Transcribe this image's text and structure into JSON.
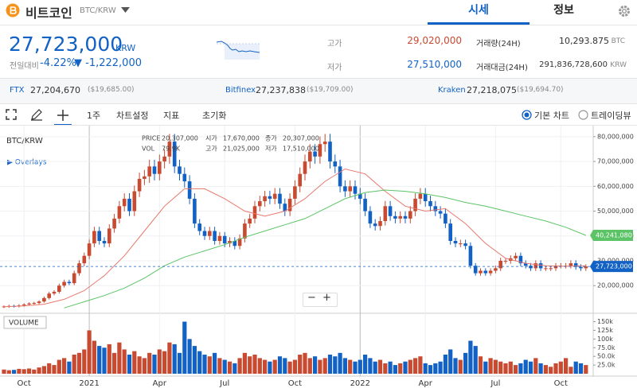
{
  "header": {
    "coin": "비트코인",
    "pair": "BTC/KRW",
    "tabs": [
      "시세",
      "정보"
    ]
  },
  "ticker": {
    "price": "27,723,000",
    "unit": "KRW",
    "change_label": "전일대비",
    "change_rate": "-4.22%",
    "change_amount": "▼ -1,222,000",
    "high_label": "고가",
    "high": "29,020,000",
    "low_label": "저가",
    "low": "27,510,000",
    "volume_label": "거래량(24H)",
    "volume": "10,293.875",
    "volume_unit": "BTC",
    "value_label": "거래대금(24H)",
    "value": "291,836,728,600",
    "value_unit": "KRW"
  },
  "exchanges": [
    {
      "name": "FTX",
      "price": "27,204,670",
      "usd": "($19,685.00)"
    },
    {
      "name": "Bitfinex",
      "price": "27,237,838",
      "usd": "($19,709.00)"
    },
    {
      "name": "Kraken",
      "price": "27,218,075",
      "usd": "($19,694.70)"
    }
  ],
  "toolbar": {
    "interval": "1주",
    "settings": "차트설정",
    "indicators": "지표",
    "reset": "초기화",
    "modes": [
      "기본 차트",
      "트레이딩뷰"
    ],
    "zoom_out": "−",
    "zoom_in": "+"
  },
  "chart_data": {
    "type": "candlestick",
    "title": "BTC/KRW",
    "overlays": "▶ Overlays",
    "up_color": "#c84a31",
    "down_color": "#1261c4",
    "categories": [
      null,
      null,
      null,
      null,
      "Oct",
      null,
      null,
      null,
      null,
      null,
      null,
      null,
      null,
      null,
      null,
      null,
      null,
      "2021",
      null,
      null,
      null,
      null,
      null,
      null,
      null,
      null,
      null,
      null,
      null,
      null,
      null,
      "Apr",
      null,
      null,
      null,
      null,
      null,
      null,
      null,
      null,
      null,
      null,
      null,
      null,
      "Jul",
      null,
      null,
      null,
      null,
      null,
      null,
      null,
      null,
      null,
      null,
      null,
      null,
      null,
      "Oct",
      null,
      null,
      null,
      null,
      null,
      null,
      null,
      null,
      null,
      null,
      null,
      null,
      "2022",
      null,
      null,
      null,
      null,
      null,
      null,
      null,
      null,
      null,
      null,
      null,
      null,
      "Apr",
      null,
      null,
      null,
      null,
      null,
      null,
      null,
      null,
      null,
      null,
      null,
      null,
      null,
      "Jul",
      null,
      null,
      null,
      null,
      null,
      null,
      null,
      null,
      null,
      null,
      null,
      null,
      "Oct",
      null,
      null,
      null,
      null,
      null
    ],
    "ohlc": [
      [
        11500000,
        12100000,
        11000000,
        11600000
      ],
      [
        11600000,
        12300000,
        11100000,
        11800000
      ],
      [
        11800000,
        12300000,
        11200000,
        11700000
      ],
      [
        11700000,
        12500000,
        11200000,
        12000000
      ],
      [
        12000000,
        12900000,
        11500000,
        12400000
      ],
      [
        12400000,
        13300000,
        11900000,
        12800000
      ],
      [
        12800000,
        13500000,
        12300000,
        13000000
      ],
      [
        13000000,
        14100000,
        12500000,
        13600000
      ],
      [
        13600000,
        15600000,
        13100000,
        15000000
      ],
      [
        15000000,
        17500000,
        14400000,
        16800000
      ],
      [
        16800000,
        18200000,
        16100000,
        17500000
      ],
      [
        17500000,
        20800000,
        16800000,
        20000000
      ],
      [
        20000000,
        22400000,
        19200000,
        21500000
      ],
      [
        21500000,
        22400000,
        20200000,
        21000000
      ],
      [
        21000000,
        26000000,
        20200000,
        25000000
      ],
      [
        25000000,
        30200000,
        24000000,
        29000000
      ],
      [
        29000000,
        33300000,
        27800000,
        32000000
      ],
      [
        32000000,
        38500000,
        30700000,
        37000000
      ],
      [
        37000000,
        43700000,
        35500000,
        42000000
      ],
      [
        42000000,
        43700000,
        36500000,
        38000000
      ],
      [
        38000000,
        39500000,
        35500000,
        37000000
      ],
      [
        37000000,
        44700000,
        35500000,
        43000000
      ],
      [
        43000000,
        48900000,
        41300000,
        47000000
      ],
      [
        47000000,
        54100000,
        45100000,
        52000000
      ],
      [
        52000000,
        57200000,
        49900000,
        55000000
      ],
      [
        55000000,
        57200000,
        48000000,
        50000000
      ],
      [
        50000000,
        60300000,
        48000000,
        58000000
      ],
      [
        58000000,
        65500000,
        55700000,
        63000000
      ],
      [
        63000000,
        66600000,
        60500000,
        64000000
      ],
      [
        64000000,
        70700000,
        61400000,
        68000000
      ],
      [
        68000000,
        70700000,
        62400000,
        65000000
      ],
      [
        65000000,
        72800000,
        62400000,
        70000000
      ],
      [
        70000000,
        74900000,
        67200000,
        72000000
      ],
      [
        72000000,
        81100000,
        69100000,
        78000000
      ],
      [
        78000000,
        81100000,
        65300000,
        68000000
      ],
      [
        68000000,
        70700000,
        62400000,
        65000000
      ],
      [
        65000000,
        67600000,
        59500000,
        62000000
      ],
      [
        62000000,
        64500000,
        52800000,
        55000000
      ],
      [
        55000000,
        57200000,
        43200000,
        45000000
      ],
      [
        45000000,
        46800000,
        40300000,
        42000000
      ],
      [
        42000000,
        43700000,
        38400000,
        40000000
      ],
      [
        40000000,
        43700000,
        38400000,
        42000000
      ],
      [
        42000000,
        43700000,
        36500000,
        38000000
      ],
      [
        38000000,
        41600000,
        36500000,
        40000000
      ],
      [
        40000000,
        41600000,
        35500000,
        37000000
      ],
      [
        37000000,
        39500000,
        35500000,
        38000000
      ],
      [
        38000000,
        39500000,
        34600000,
        36000000
      ],
      [
        36000000,
        40600000,
        34600000,
        39000000
      ],
      [
        39000000,
        46800000,
        37400000,
        45000000
      ],
      [
        45000000,
        48900000,
        43200000,
        47000000
      ],
      [
        47000000,
        54100000,
        45100000,
        52000000
      ],
      [
        52000000,
        56200000,
        49900000,
        54000000
      ],
      [
        54000000,
        58200000,
        51800000,
        56000000
      ],
      [
        56000000,
        58200000,
        52800000,
        55000000
      ],
      [
        55000000,
        59300000,
        52800000,
        57000000
      ],
      [
        57000000,
        59300000,
        50900000,
        53000000
      ],
      [
        53000000,
        55100000,
        48000000,
        50000000
      ],
      [
        50000000,
        57200000,
        48000000,
        55000000
      ],
      [
        55000000,
        62400000,
        52800000,
        60000000
      ],
      [
        60000000,
        67600000,
        57600000,
        65000000
      ],
      [
        65000000,
        72800000,
        62400000,
        70000000
      ],
      [
        70000000,
        77000000,
        67200000,
        74000000
      ],
      [
        74000000,
        77000000,
        69100000,
        72000000
      ],
      [
        72000000,
        80100000,
        69100000,
        77000000
      ],
      [
        77000000,
        81100000,
        73900000,
        78000000
      ],
      [
        78000000,
        81100000,
        67200000,
        70000000
      ],
      [
        70000000,
        72800000,
        65300000,
        68000000
      ],
      [
        68000000,
        70700000,
        57600000,
        60000000
      ],
      [
        60000000,
        62400000,
        55700000,
        58000000
      ],
      [
        58000000,
        62400000,
        55700000,
        60000000
      ],
      [
        60000000,
        62400000,
        54700000,
        57000000
      ],
      [
        57000000,
        59300000,
        52800000,
        55000000
      ],
      [
        55000000,
        57200000,
        48000000,
        50000000
      ],
      [
        50000000,
        52000000,
        43200000,
        45000000
      ],
      [
        45000000,
        46800000,
        42200000,
        44000000
      ],
      [
        44000000,
        47800000,
        42200000,
        46000000
      ],
      [
        46000000,
        54100000,
        44200000,
        52000000
      ],
      [
        52000000,
        54100000,
        46100000,
        48000000
      ],
      [
        48000000,
        49900000,
        45100000,
        47000000
      ],
      [
        47000000,
        49900000,
        45100000,
        48000000
      ],
      [
        48000000,
        49900000,
        45100000,
        47000000
      ],
      [
        47000000,
        52000000,
        45100000,
        50000000
      ],
      [
        50000000,
        57200000,
        48000000,
        55000000
      ],
      [
        55000000,
        59300000,
        52800000,
        57000000
      ],
      [
        57000000,
        59300000,
        51800000,
        54000000
      ],
      [
        54000000,
        56200000,
        49900000,
        52000000
      ],
      [
        52000000,
        54100000,
        48000000,
        50000000
      ],
      [
        50000000,
        52000000,
        47000000,
        49000000
      ],
      [
        49000000,
        51000000,
        43200000,
        45000000
      ],
      [
        45000000,
        46800000,
        36500000,
        38000000
      ],
      [
        38000000,
        39500000,
        35500000,
        37000000
      ],
      [
        37000000,
        38500000,
        35500000,
        37000000
      ],
      [
        37000000,
        38500000,
        34600000,
        36000000
      ],
      [
        36000000,
        37400000,
        26900000,
        28000000
      ],
      [
        28000000,
        29100000,
        24000000,
        25000000
      ],
      [
        25000000,
        27000000,
        24000000,
        26000000
      ],
      [
        26000000,
        27000000,
        24000000,
        25000000
      ],
      [
        25000000,
        27000000,
        24000000,
        26000000
      ],
      [
        26000000,
        28100000,
        25000000,
        27000000
      ],
      [
        27000000,
        31200000,
        25900000,
        30000000
      ],
      [
        30000000,
        31200000,
        28800000,
        30000000
      ],
      [
        30000000,
        32200000,
        28800000,
        31000000
      ],
      [
        31000000,
        33300000,
        29800000,
        32000000
      ],
      [
        32000000,
        33300000,
        27800000,
        29000000
      ],
      [
        29000000,
        30200000,
        26900000,
        28000000
      ],
      [
        28000000,
        29100000,
        25900000,
        27000000
      ],
      [
        27000000,
        30200000,
        25900000,
        29000000
      ],
      [
        29000000,
        30200000,
        25900000,
        27000000
      ],
      [
        27000000,
        28100000,
        25900000,
        27000000
      ],
      [
        27000000,
        28100000,
        25900000,
        27000000
      ],
      [
        27000000,
        29100000,
        25900000,
        28000000
      ],
      [
        28000000,
        29100000,
        26900000,
        28000000
      ],
      [
        28000000,
        29100000,
        26900000,
        28000000
      ],
      [
        28000000,
        30200000,
        26900000,
        29000000
      ],
      [
        29000000,
        30200000,
        26400000,
        27500000
      ],
      [
        27500000,
        28600000,
        25900000,
        27000000
      ],
      [
        27000000,
        28600000,
        25900000,
        27723000
      ]
    ],
    "ylim": [
      9500000,
      83800000
    ],
    "yticks": [
      {
        "value": 20000000,
        "label": "20,000,000"
      },
      {
        "value": 30000000,
        "label": "30,000,000"
      },
      {
        "value": 40000000,
        "label": "40,000,000"
      },
      {
        "value": 50000000,
        "label": "50,000,000"
      },
      {
        "value": 60000000,
        "label": "60,000,000"
      },
      {
        "value": 70000000,
        "label": "70,000,000"
      },
      {
        "value": 80000000,
        "label": "80,000,000"
      }
    ],
    "ma": [
      {
        "color": "#e8786c",
        "values": [
          11500000,
          11800000,
          12500000,
          14500000,
          18000000,
          24000000,
          32000000,
          42000000,
          52000000,
          59000000,
          59000000,
          55000000,
          50000000,
          48000000,
          50000000,
          55000000,
          62000000,
          67000000,
          65000000,
          58000000,
          52000000,
          50000000,
          51000000,
          45000000,
          37000000,
          31000000,
          29000000,
          28000000,
          27800000,
          28000000
        ]
      },
      {
        "color": "#5cc466",
        "label": "40,241,080",
        "values": [
          null,
          null,
          null,
          11000000,
          13500000,
          16000000,
          19000000,
          23000000,
          28000000,
          31500000,
          34000000,
          36500000,
          39500000,
          42000000,
          44500000,
          47000000,
          51000000,
          55000000,
          57500000,
          58500000,
          58000000,
          57000000,
          55500000,
          53500000,
          52000000,
          50000000,
          48000000,
          46000000,
          43500000,
          40241080
        ]
      }
    ],
    "current_price": {
      "value": 27723000,
      "label": "27,723,000"
    },
    "tooltip": {
      "price_label": "PRICE",
      "price": "20,307,000",
      "open_label": "시가",
      "open": "17,670,000",
      "close_label": "종가",
      "close": "20,307,000",
      "vol_label": "VOL",
      "vol": "79.9K",
      "high_label": "고가",
      "high": "21,025,000",
      "low_label": "저가",
      "low": "17,510,000"
    },
    "volume": {
      "title": "VOLUME",
      "values": [
        12000,
        10000,
        11000,
        14000,
        13000,
        15000,
        12000,
        18000,
        22000,
        30000,
        25000,
        40000,
        45000,
        35000,
        55000,
        60000,
        70000,
        125000,
        95000,
        80000,
        75000,
        85000,
        60000,
        90000,
        70000,
        55000,
        65000,
        50000,
        45000,
        60000,
        55000,
        70000,
        65000,
        90000,
        85000,
        60000,
        150000,
        100000,
        80000,
        65000,
        55000,
        50000,
        60000,
        45000,
        40000,
        35000,
        30000,
        45000,
        60000,
        50000,
        55000,
        45000,
        40000,
        35000,
        40000,
        50000,
        45000,
        35000,
        40000,
        55000,
        60000,
        45000,
        50000,
        40000,
        45000,
        55000,
        50000,
        60000,
        45000,
        40000,
        35000,
        40000,
        55000,
        45000,
        35000,
        40000,
        30000,
        35000,
        25000,
        30000,
        35000,
        40000,
        45000,
        50000,
        30000,
        25000,
        30000,
        35000,
        55000,
        70000,
        45000,
        40000,
        60000,
        95000,
        80000,
        50000,
        35000,
        45000,
        40000,
        35000,
        30000,
        35000,
        25000,
        30000,
        40000,
        35000,
        45000,
        30000,
        25000,
        20000,
        30000,
        35000,
        45000,
        20000,
        35000,
        30000,
        25000
      ],
      "ylim": [
        0,
        165000
      ],
      "yticks": [
        {
          "value": 25000,
          "label": "25.0k"
        },
        {
          "value": 50000,
          "label": "50.0k"
        },
        {
          "value": 75000,
          "label": "75.0k"
        },
        {
          "value": 100000,
          "label": "100k"
        },
        {
          "value": 125000,
          "label": "125k"
        },
        {
          "value": 150000,
          "label": "150k"
        }
      ]
    }
  }
}
